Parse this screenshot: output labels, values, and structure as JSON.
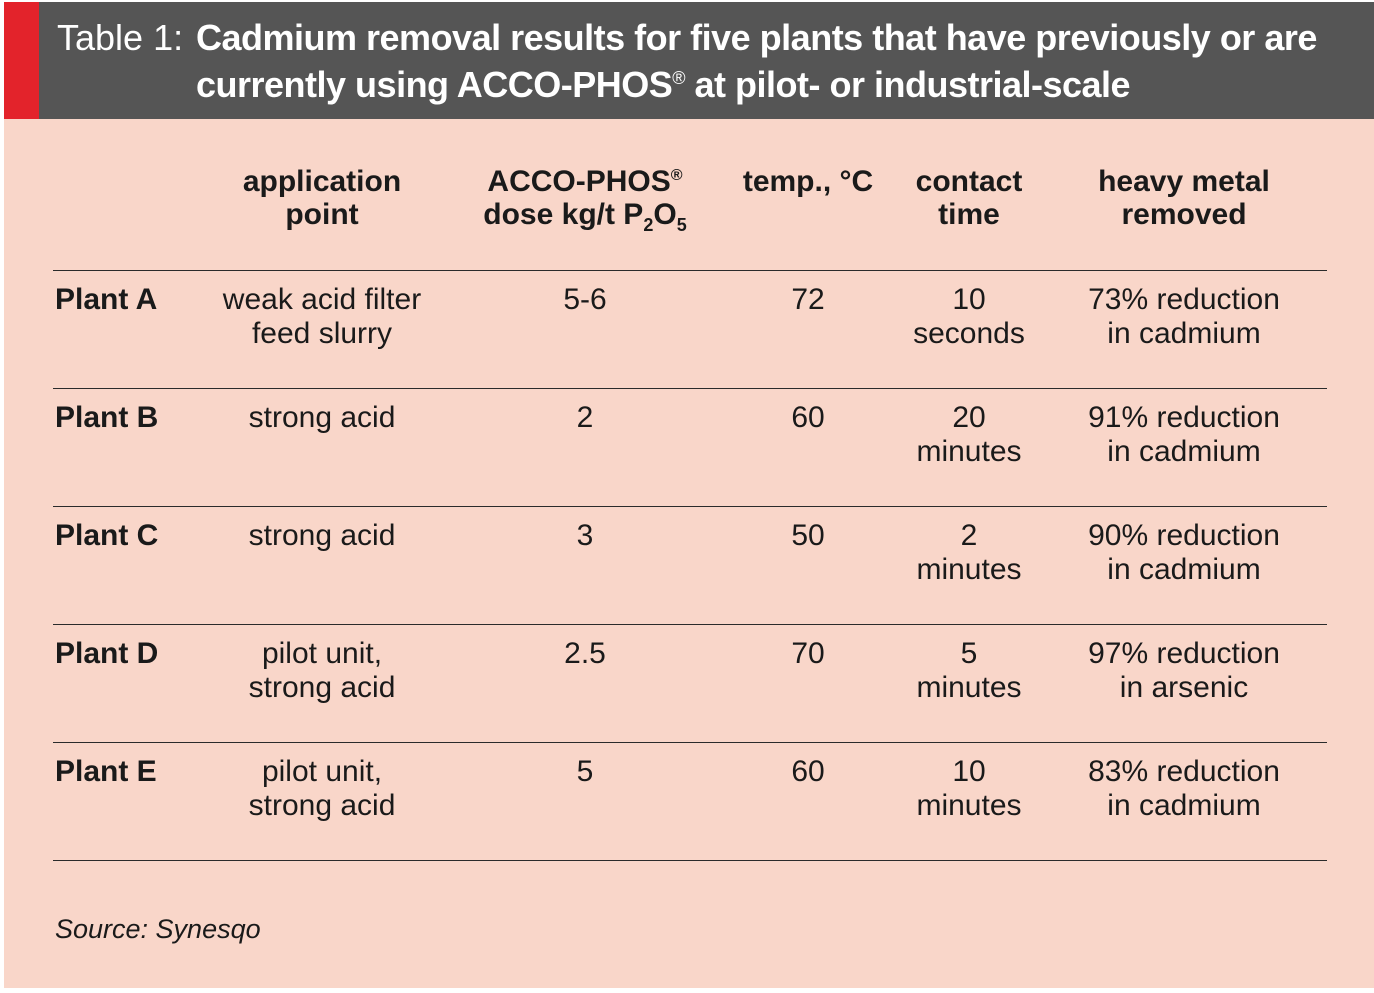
{
  "title": {
    "prefix": "Table 1:",
    "text_before_sup": "Cadmium removal results for five plants that have previously or are currently using ACCO-PHOS",
    "sup": "®",
    "text_after_sup": " at pilot- or industrial-scale"
  },
  "headers": {
    "application": [
      "application",
      "point"
    ],
    "dose": {
      "line1": "ACCO-PHOS",
      "sup": "®",
      "line2_a": "dose kg/t P",
      "sub1": "2",
      "line2_b": "O",
      "sub2": "5"
    },
    "temp": "temp., °C",
    "time": [
      "contact",
      "time"
    ],
    "metal": [
      "heavy metal",
      "removed"
    ]
  },
  "rows": [
    {
      "plant": "Plant A",
      "application": [
        "weak acid filter",
        "feed slurry"
      ],
      "dose": "5-6",
      "temp": "72",
      "time": [
        "10",
        "seconds"
      ],
      "result": [
        "73% reduction",
        "in cadmium"
      ]
    },
    {
      "plant": "Plant B",
      "application": [
        "strong acid",
        ""
      ],
      "dose": "2",
      "temp": "60",
      "time": [
        "20",
        "minutes"
      ],
      "result": [
        "91% reduction",
        "in cadmium"
      ]
    },
    {
      "plant": "Plant C",
      "application": [
        "strong acid",
        ""
      ],
      "dose": "3",
      "temp": "50",
      "time": [
        "2",
        "minutes"
      ],
      "result": [
        "90% reduction",
        "in cadmium"
      ]
    },
    {
      "plant": "Plant D",
      "application": [
        "pilot unit,",
        "strong acid"
      ],
      "dose": "2.5",
      "temp": "70",
      "time": [
        "5",
        "minutes"
      ],
      "result": [
        "97% reduction",
        "in arsenic"
      ]
    },
    {
      "plant": "Plant E",
      "application": [
        "pilot unit,",
        "strong acid"
      ],
      "dose": "5",
      "temp": "60",
      "time": [
        "10",
        "minutes"
      ],
      "result": [
        "83% reduction",
        "in cadmium"
      ]
    }
  ],
  "source": "Source: Synesqo",
  "colors": {
    "header_bg": "#555555",
    "accent": "#e3232b",
    "panel_bg": "#f9d6c9",
    "text": "#1a1a1a"
  }
}
